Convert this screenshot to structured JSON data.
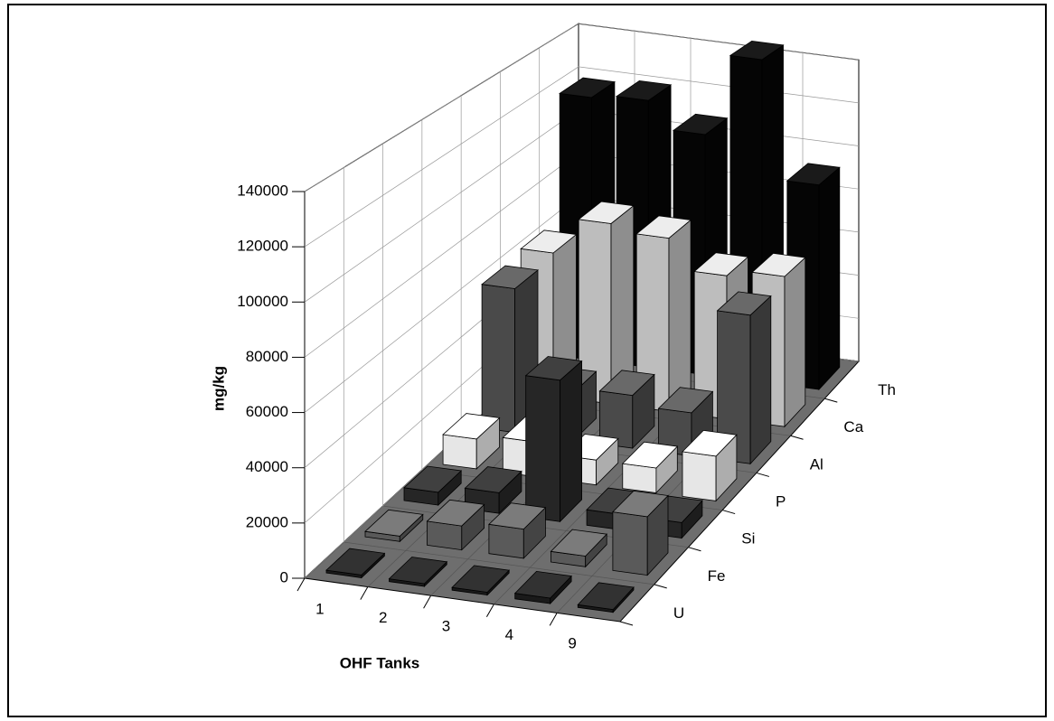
{
  "chart_data": {
    "type": "bar",
    "x_label": "OHF Tanks",
    "y_label": "mg/kg",
    "categories": [
      "1",
      "2",
      "3",
      "4",
      "9"
    ],
    "series": [
      {
        "name": "U",
        "color": "#1a1a1a",
        "values": [
          1000,
          1000,
          1000,
          2000,
          1000
        ]
      },
      {
        "name": "Fe",
        "color": "#5a5a5a",
        "values": [
          2000,
          9000,
          11000,
          4000,
          22000
        ]
      },
      {
        "name": "Si",
        "color": "#262626",
        "values": [
          5000,
          8000,
          55000,
          6000,
          6000
        ]
      },
      {
        "name": "P",
        "color": "#e6e6e6",
        "values": [
          12000,
          14000,
          10000,
          10000,
          18000
        ]
      },
      {
        "name": "Al",
        "color": "#4a4a4a",
        "values": [
          60000,
          20000,
          22000,
          18000,
          62000
        ]
      },
      {
        "name": "Ca",
        "color": "#bdbdbd",
        "values": [
          62000,
          78000,
          75000,
          62000,
          65000
        ]
      },
      {
        "name": "Th",
        "color": "#050505",
        "values": [
          118000,
          120000,
          108000,
          145000,
          92000
        ]
      }
    ],
    "ylim": [
      0,
      140000
    ],
    "yticks": [
      0,
      20000,
      40000,
      60000,
      80000,
      100000,
      120000,
      140000
    ],
    "grid": true
  }
}
